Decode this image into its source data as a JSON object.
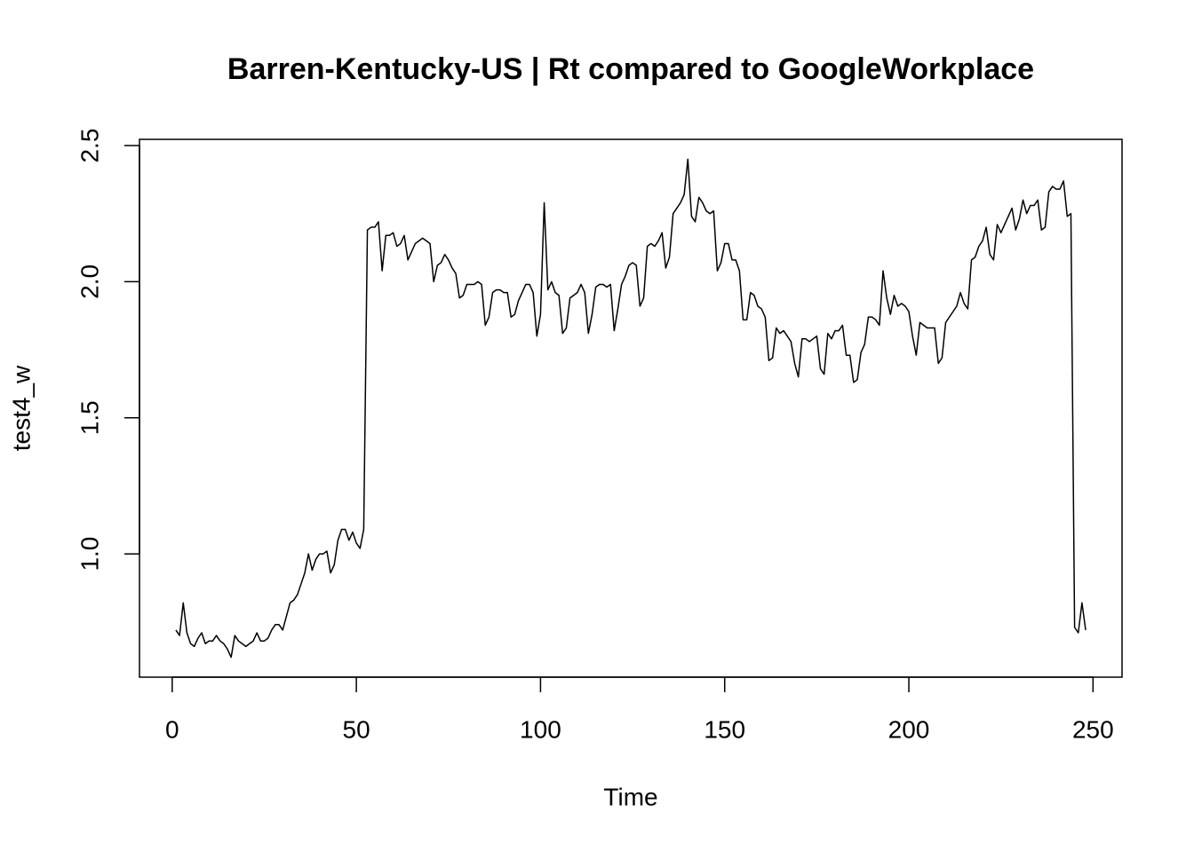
{
  "chart_data": {
    "type": "line",
    "title": "Barren-Kentucky-US | Rt compared to GoogleWorkplace",
    "x_label": "Time",
    "y_label": "test4_w",
    "color": "#000000",
    "grid": false,
    "xlim": [
      -8.88,
      257.88
    ],
    "ylim": [
      0.547,
      2.523
    ],
    "xticks": [
      0,
      50,
      100,
      150,
      200,
      250
    ],
    "yticks": [
      {
        "value": 1,
        "label": "1.0"
      },
      1.5,
      {
        "value": 2,
        "label": "2.0"
      },
      2.5
    ],
    "x": [
      1,
      2,
      3,
      4,
      5,
      6,
      7,
      8,
      9,
      10,
      11,
      12,
      13,
      14,
      15,
      16,
      17,
      18,
      19,
      20,
      21,
      22,
      23,
      24,
      25,
      26,
      27,
      28,
      29,
      30,
      31,
      32,
      33,
      34,
      35,
      36,
      37,
      38,
      39,
      40,
      41,
      42,
      43,
      44,
      45,
      46,
      47,
      48,
      49,
      50,
      51,
      52,
      53,
      54,
      55,
      56,
      57,
      58,
      59,
      60,
      61,
      62,
      63,
      64,
      65,
      66,
      67,
      68,
      69,
      70,
      71,
      72,
      73,
      74,
      75,
      76,
      77,
      78,
      79,
      80,
      81,
      82,
      83,
      84,
      85,
      86,
      87,
      88,
      89,
      90,
      91,
      92,
      93,
      94,
      95,
      96,
      97,
      98,
      99,
      100,
      101,
      102,
      103,
      104,
      105,
      106,
      107,
      108,
      109,
      110,
      111,
      112,
      113,
      114,
      115,
      116,
      117,
      118,
      119,
      120,
      121,
      122,
      123,
      124,
      125,
      126,
      127,
      128,
      129,
      130,
      131,
      132,
      133,
      134,
      135,
      136,
      137,
      138,
      139,
      140,
      141,
      142,
      143,
      144,
      145,
      146,
      147,
      148,
      149,
      150,
      151,
      152,
      153,
      154,
      155,
      156,
      157,
      158,
      159,
      160,
      161,
      162,
      163,
      164,
      165,
      166,
      167,
      168,
      169,
      170,
      171,
      172,
      173,
      174,
      175,
      176,
      177,
      178,
      179,
      180,
      181,
      182,
      183,
      184,
      185,
      186,
      187,
      188,
      189,
      190,
      191,
      192,
      193,
      194,
      195,
      196,
      197,
      198,
      199,
      200,
      201,
      202,
      203,
      204,
      205,
      206,
      207,
      208,
      209,
      210,
      211,
      212,
      213,
      214,
      215,
      216,
      217,
      218,
      219,
      220,
      221,
      222,
      223,
      224,
      225,
      226,
      227,
      228,
      229,
      230,
      231,
      232,
      233,
      234,
      235,
      236,
      237,
      238,
      239,
      240,
      241,
      242,
      243,
      244,
      245,
      246,
      247,
      248
    ],
    "values": [
      0.72,
      0.7,
      0.82,
      0.71,
      0.67,
      0.66,
      0.69,
      0.71,
      0.67,
      0.68,
      0.68,
      0.7,
      0.68,
      0.67,
      0.65,
      0.62,
      0.7,
      0.68,
      0.67,
      0.66,
      0.67,
      0.68,
      0.71,
      0.68,
      0.68,
      0.69,
      0.72,
      0.74,
      0.74,
      0.72,
      0.77,
      0.82,
      0.83,
      0.85,
      0.89,
      0.93,
      1.0,
      0.94,
      0.98,
      1.0,
      1.0,
      1.01,
      0.93,
      0.96,
      1.05,
      1.09,
      1.09,
      1.05,
      1.08,
      1.04,
      1.02,
      1.09,
      2.19,
      2.2,
      2.2,
      2.22,
      2.04,
      2.17,
      2.17,
      2.18,
      2.13,
      2.14,
      2.17,
      2.08,
      2.11,
      2.14,
      2.15,
      2.16,
      2.15,
      2.14,
      2.0,
      2.06,
      2.07,
      2.1,
      2.08,
      2.05,
      2.03,
      1.94,
      1.95,
      1.99,
      1.99,
      1.99,
      2.0,
      1.99,
      1.84,
      1.87,
      1.96,
      1.97,
      1.97,
      1.96,
      1.96,
      1.87,
      1.88,
      1.93,
      1.96,
      1.99,
      1.99,
      1.96,
      1.8,
      1.88,
      2.29,
      1.97,
      2.0,
      1.96,
      1.95,
      1.81,
      1.83,
      1.94,
      1.95,
      1.96,
      1.99,
      1.96,
      1.81,
      1.88,
      1.98,
      1.99,
      1.99,
      1.98,
      1.99,
      1.82,
      1.9,
      1.99,
      2.02,
      2.06,
      2.07,
      2.06,
      1.91,
      1.94,
      2.13,
      2.14,
      2.13,
      2.15,
      2.18,
      2.05,
      2.09,
      2.25,
      2.27,
      2.29,
      2.32,
      2.45,
      2.24,
      2.22,
      2.31,
      2.29,
      2.26,
      2.25,
      2.26,
      2.04,
      2.07,
      2.14,
      2.14,
      2.08,
      2.08,
      2.04,
      1.86,
      1.86,
      1.96,
      1.95,
      1.91,
      1.9,
      1.87,
      1.71,
      1.72,
      1.83,
      1.81,
      1.82,
      1.8,
      1.78,
      1.7,
      1.65,
      1.79,
      1.79,
      1.78,
      1.79,
      1.8,
      1.68,
      1.66,
      1.81,
      1.79,
      1.82,
      1.82,
      1.84,
      1.73,
      1.73,
      1.63,
      1.64,
      1.74,
      1.77,
      1.87,
      1.87,
      1.86,
      1.84,
      2.04,
      1.94,
      1.88,
      1.95,
      1.91,
      1.92,
      1.91,
      1.89,
      1.8,
      1.73,
      1.85,
      1.84,
      1.83,
      1.83,
      1.83,
      1.7,
      1.72,
      1.85,
      1.87,
      1.89,
      1.91,
      1.96,
      1.92,
      1.9,
      2.08,
      2.09,
      2.13,
      2.15,
      2.2,
      2.1,
      2.08,
      2.21,
      2.18,
      2.21,
      2.24,
      2.27,
      2.19,
      2.23,
      2.3,
      2.25,
      2.28,
      2.28,
      2.3,
      2.19,
      2.2,
      2.33,
      2.35,
      2.34,
      2.34,
      2.37,
      2.24,
      2.25,
      0.73,
      0.71,
      0.82,
      0.72
    ]
  }
}
